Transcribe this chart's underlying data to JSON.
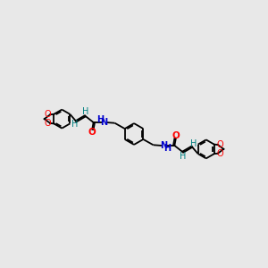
{
  "bg_color": "#e8e8e8",
  "line_color": "#000000",
  "O_color": "#ff0000",
  "N_color": "#0000cc",
  "H_color": "#008080",
  "bond_lw": 1.3,
  "fig_width": 3.0,
  "fig_height": 3.0,
  "dpi": 100,
  "xlim": [
    -10.5,
    10.5
  ],
  "ylim": [
    -4.0,
    4.0
  ]
}
